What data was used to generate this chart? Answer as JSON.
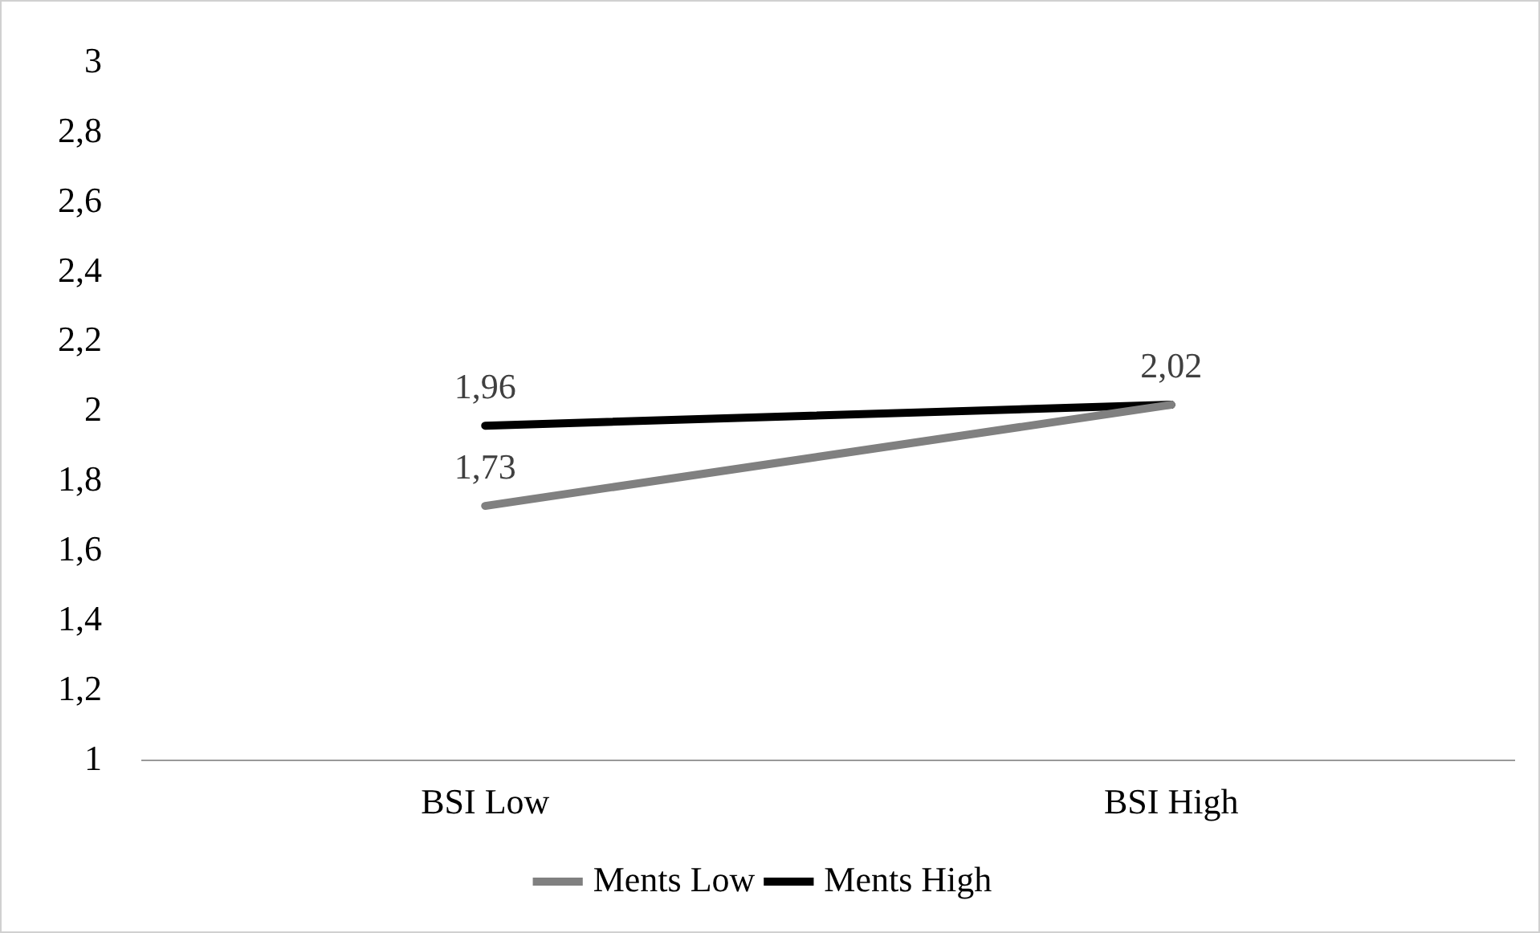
{
  "chart_data": {
    "type": "line",
    "categories": [
      "BSI Low",
      "BSI High"
    ],
    "series": [
      {
        "name": "Ments Low",
        "color": "#808080",
        "values": [
          1.73,
          2.02
        ],
        "value_labels": [
          "1,73",
          null
        ]
      },
      {
        "name": "Ments High",
        "color": "#000000",
        "values": [
          1.96,
          2.02
        ],
        "value_labels": [
          "1,96",
          "2,02"
        ]
      }
    ],
    "ylim": [
      1,
      3
    ],
    "yticks": [
      {
        "value": 1,
        "label": "1"
      },
      {
        "value": 1.2,
        "label": "1,2"
      },
      {
        "value": 1.4,
        "label": "1,4"
      },
      {
        "value": 1.6,
        "label": "1,6"
      },
      {
        "value": 1.8,
        "label": "1,8"
      },
      {
        "value": 2,
        "label": "2"
      },
      {
        "value": 2.2,
        "label": "2,2"
      },
      {
        "value": 2.4,
        "label": "2,4"
      },
      {
        "value": 2.6,
        "label": "2,6"
      },
      {
        "value": 2.8,
        "label": "2,8"
      },
      {
        "value": 3,
        "label": "3"
      }
    ],
    "grid": false,
    "legend": "bottom",
    "marker": "none",
    "line_style": "solid"
  }
}
